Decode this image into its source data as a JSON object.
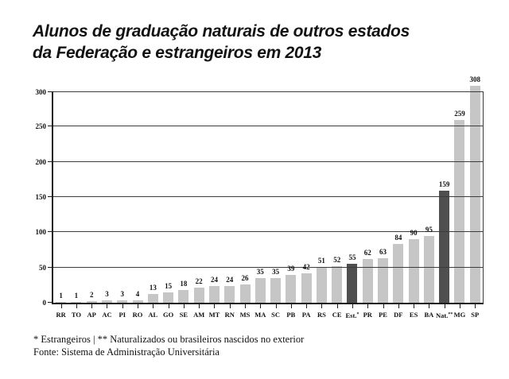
{
  "title": {
    "line1": "Alunos de graduação naturais de outros estados",
    "line2": "da Federação e estrangeiros em 2013"
  },
  "chart_data": {
    "type": "bar",
    "title": "Alunos de graduação naturais de outros estados da Federação e estrangeiros em 2013",
    "categories": [
      "RR",
      "TO",
      "AP",
      "AC",
      "PI",
      "RO",
      "AL",
      "GO",
      "SE",
      "AM",
      "MT",
      "RN",
      "MS",
      "MA",
      "SC",
      "PB",
      "PA",
      "RS",
      "CE",
      "Est.*",
      "PR",
      "PE",
      "DF",
      "ES",
      "BA",
      "Nat.**",
      "MG",
      "SP"
    ],
    "values": [
      1,
      1,
      2,
      3,
      3,
      4,
      13,
      15,
      18,
      22,
      24,
      24,
      26,
      35,
      35,
      39,
      42,
      51,
      52,
      55,
      62,
      63,
      84,
      90,
      95,
      159,
      259,
      308
    ],
    "highlighted_categories": [
      "Est.*",
      "Nat.**"
    ],
    "bar_color": "#c6c6c6",
    "highlight_color": "#4f4f4f",
    "xlabel": "",
    "ylabel": "",
    "ylim": [
      0,
      300
    ],
    "yticks": [
      0,
      50,
      100,
      150,
      200,
      250,
      300
    ],
    "grid": "horizontal gridlines drawn over bars",
    "legend": "none"
  },
  "footnotes": {
    "line1": "* Estrangeiros | ** Naturalizados ou brasileiros nascidos no exterior",
    "line2": "Fonte: Sistema de Administração Universitária"
  }
}
